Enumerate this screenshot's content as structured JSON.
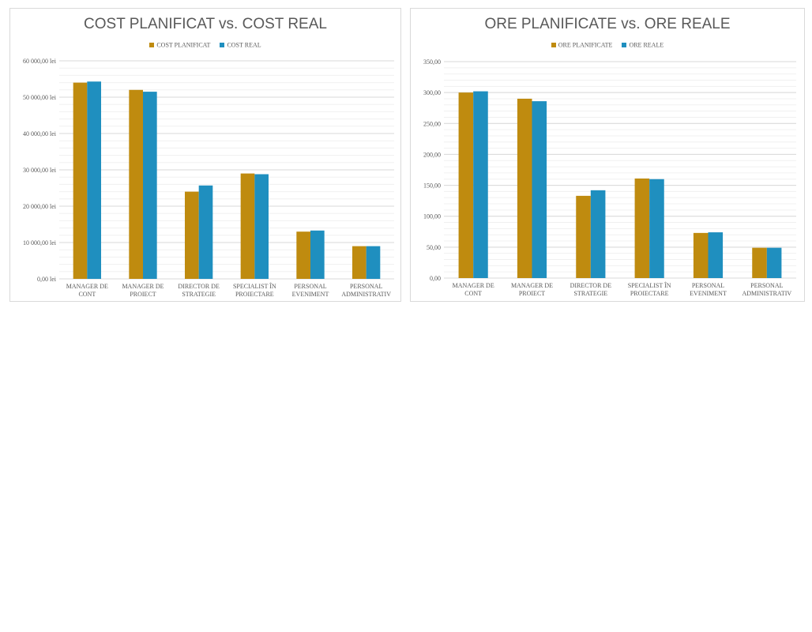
{
  "colors": {
    "planned": "#bf8b0f",
    "actual": "#1f8fbf",
    "grid": "#d9d9d9",
    "text": "#595959"
  },
  "chart_data": [
    {
      "type": "bar",
      "title": "COST PLANIFICAT vs. COST REAL",
      "categories": [
        [
          "MANAGER DE",
          "CONT"
        ],
        [
          "MANAGER DE",
          "PROIECT"
        ],
        [
          "DIRECTOR DE",
          "STRATEGIE"
        ],
        [
          "SPECIALIST ÎN",
          "PROIECTARE"
        ],
        [
          "PERSONAL",
          "EVENIMENT"
        ],
        [
          "PERSONAL",
          "ADMINISTRATIV"
        ]
      ],
      "series": [
        {
          "name": "COST PLANIFICAT",
          "values": [
            54000,
            52000,
            24000,
            29000,
            13000,
            9000
          ]
        },
        {
          "name": "COST REAL",
          "values": [
            54300,
            51500,
            25700,
            28800,
            13300,
            9000
          ]
        }
      ],
      "ylim": [
        0,
        60000
      ],
      "yticks": [
        0,
        10000,
        20000,
        30000,
        40000,
        50000,
        60000
      ],
      "ytick_labels": [
        "0,00 lei",
        "10 000,00 lei",
        "20 000,00 lei",
        "30 000,00 lei",
        "40 000,00 lei",
        "50 000,00 lei",
        "60 000,00 lei"
      ],
      "grid": true,
      "legend": "top-center"
    },
    {
      "type": "bar",
      "title": "ORE PLANIFICATE vs. ORE REALE",
      "categories": [
        [
          "MANAGER DE",
          "CONT"
        ],
        [
          "MANAGER DE",
          "PROIECT"
        ],
        [
          "DIRECTOR DE",
          "STRATEGIE"
        ],
        [
          "SPECIALIST ÎN",
          "PROIECTARE"
        ],
        [
          "PERSONAL",
          "EVENIMENT"
        ],
        [
          "PERSONAL",
          "ADMINISTRATIV"
        ]
      ],
      "series": [
        {
          "name": "ORE PLANIFICATE",
          "values": [
            300,
            290,
            133,
            161,
            73,
            49
          ]
        },
        {
          "name": "ORE REALE",
          "values": [
            302,
            286,
            142,
            160,
            74,
            49
          ]
        }
      ],
      "ylim": [
        0,
        350
      ],
      "yticks": [
        0,
        50,
        100,
        150,
        200,
        250,
        300,
        350
      ],
      "ytick_labels": [
        "0,00",
        "50,00",
        "100,00",
        "150,00",
        "200,00",
        "250,00",
        "300,00",
        "350,00"
      ],
      "grid": true,
      "legend": "top-center"
    }
  ]
}
